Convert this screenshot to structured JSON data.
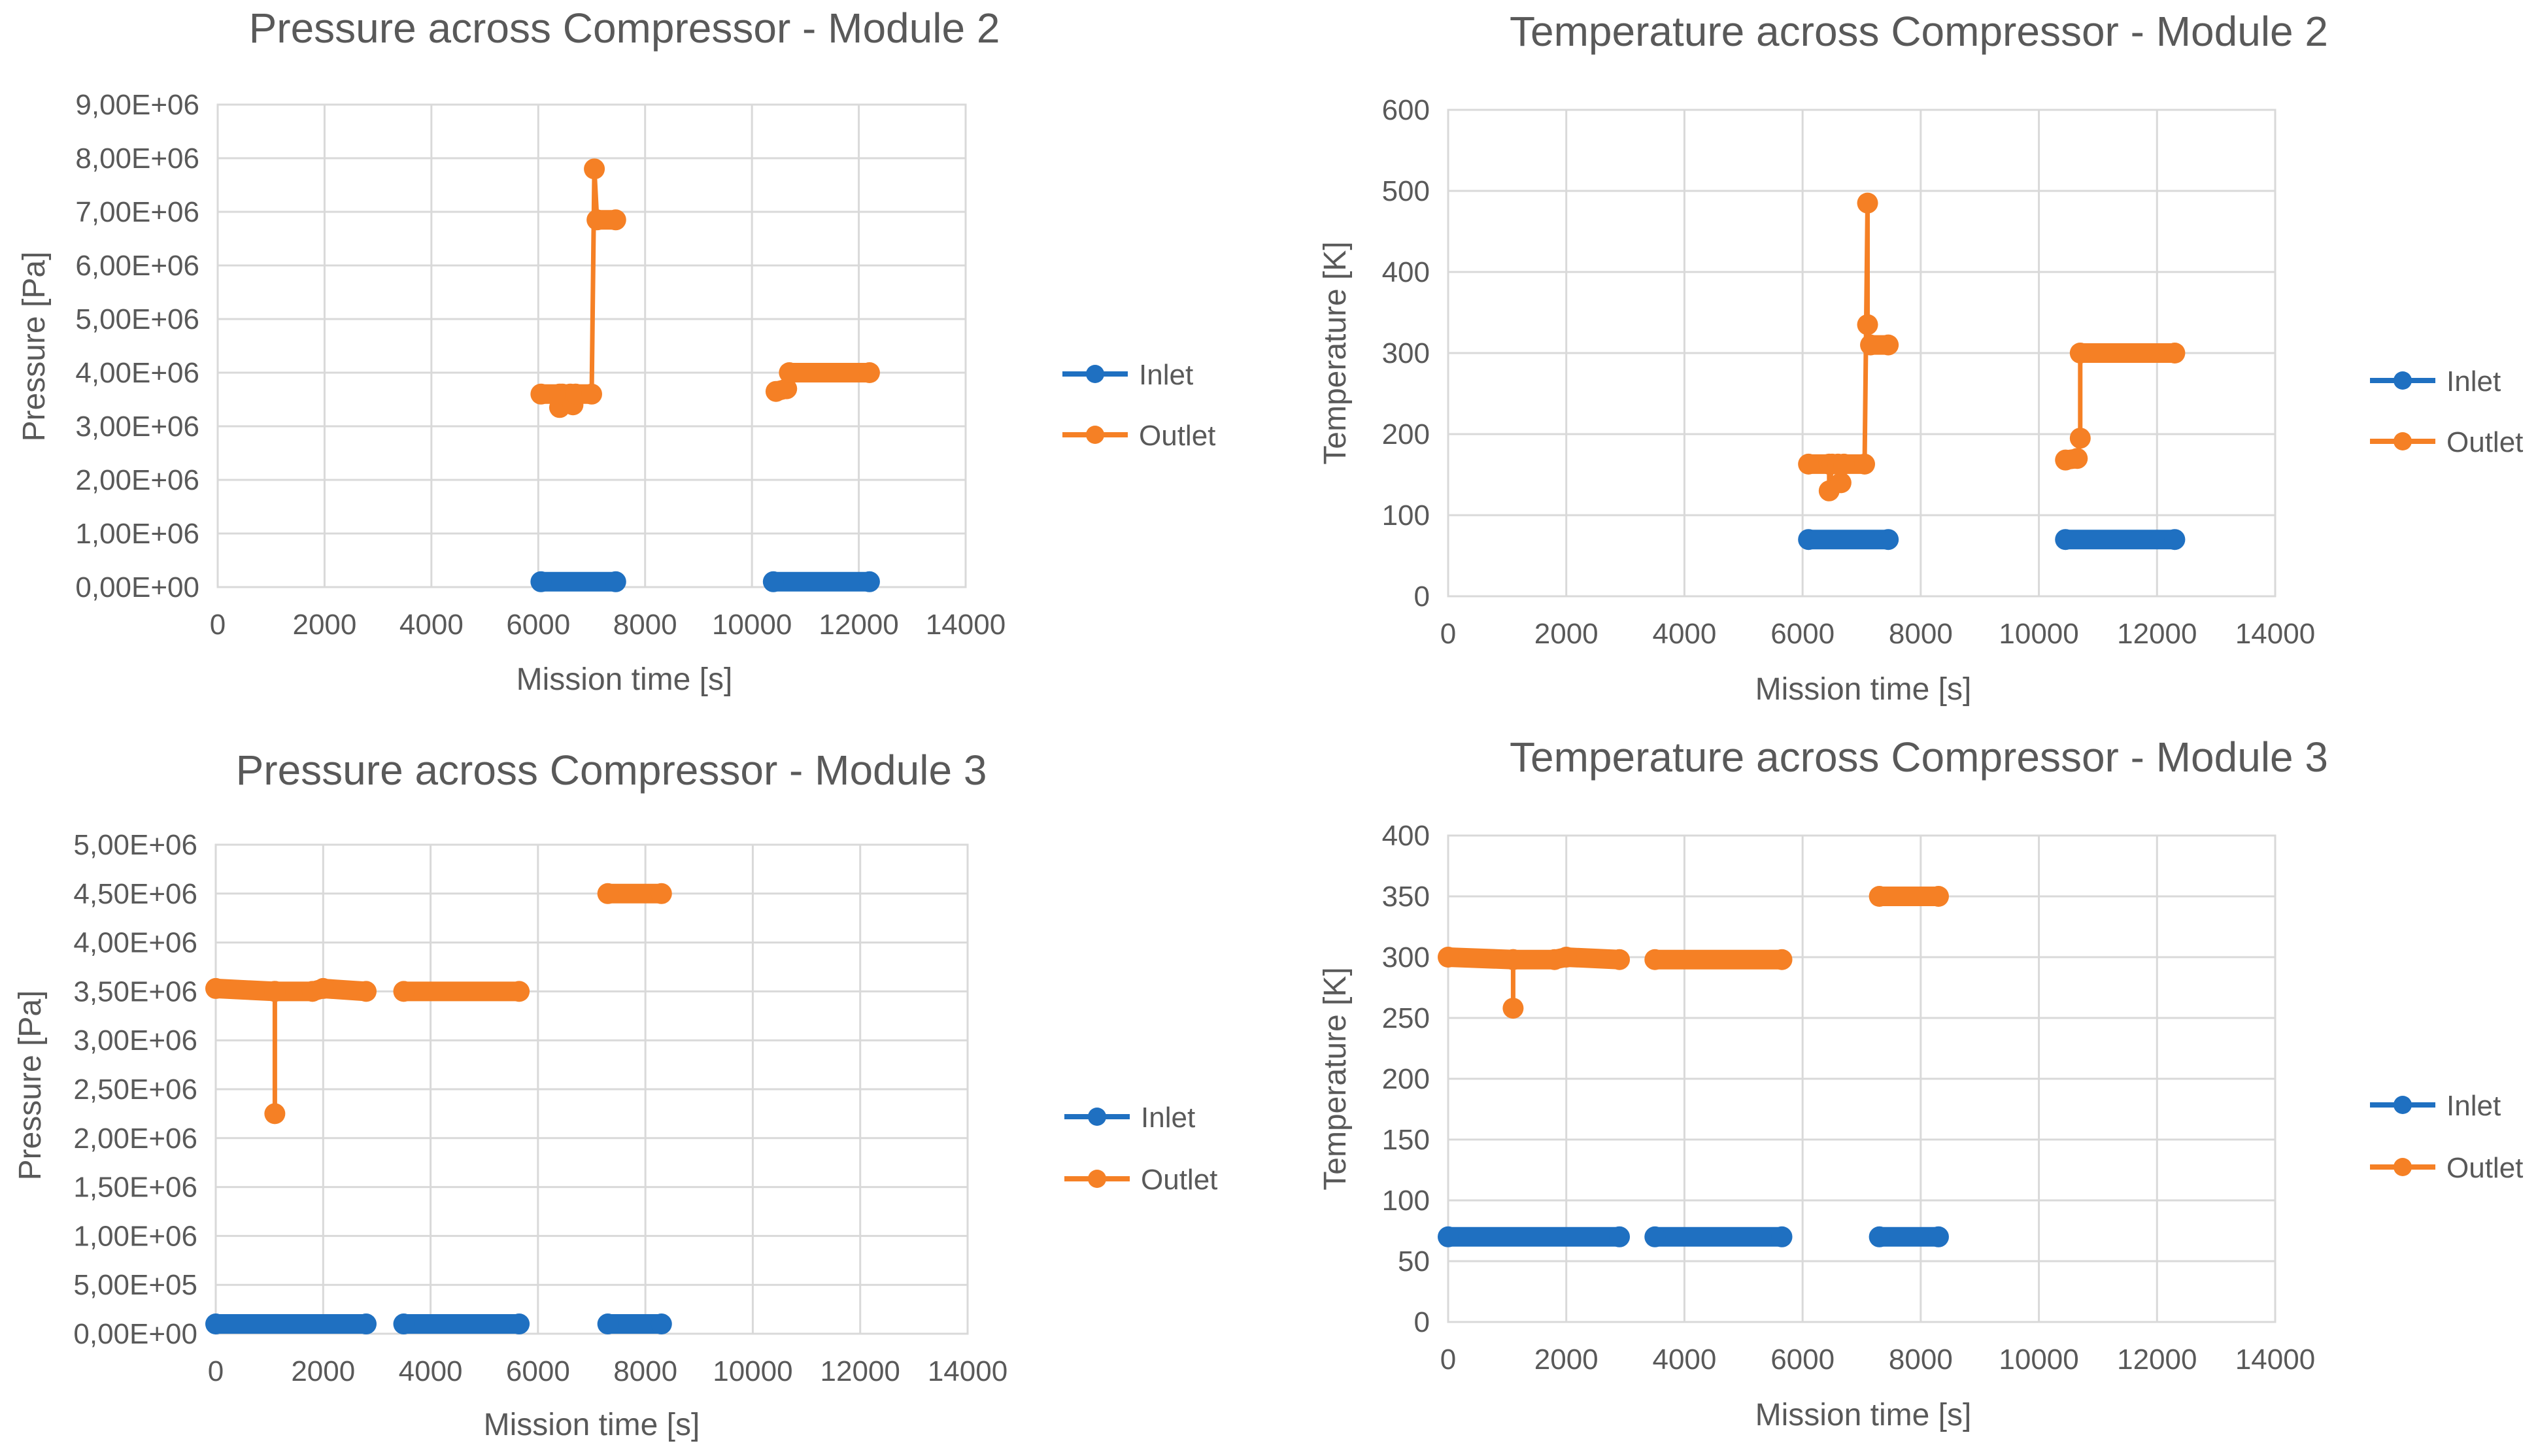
{
  "colors": {
    "inlet": "#1F70C1",
    "outlet": "#F58025",
    "grid": "#D9D9D9",
    "text": "#595959"
  },
  "chart_data": [
    {
      "type": "line",
      "title": "Pressure across Compressor  - Module 2",
      "xlabel": "Mission time [s]",
      "ylabel": "Pressure [Pa]",
      "xlim": [
        0,
        14000
      ],
      "ylim": [
        0,
        9000000
      ],
      "x_ticks": [
        "0",
        "2000",
        "4000",
        "6000",
        "8000",
        "10000",
        "12000",
        "14000"
      ],
      "y_ticks": [
        "0,00E+00",
        "1,00E+06",
        "2,00E+06",
        "3,00E+06",
        "4,00E+06",
        "5,00E+06",
        "6,00E+06",
        "7,00E+06",
        "8,00E+06",
        "9,00E+06"
      ],
      "legend": [
        "Inlet",
        "Outlet"
      ],
      "series": [
        {
          "name": "Inlet",
          "segments": [
            [
              [
                6050,
                100000
              ],
              [
                7450,
                100000
              ]
            ],
            [
              [
                10400,
                100000
              ],
              [
                12200,
                100000
              ]
            ]
          ]
        },
        {
          "name": "Outlet",
          "segments": [
            [
              [
                6050,
                3600000
              ],
              [
                6400,
                3600000
              ],
              [
                6400,
                3350000
              ],
              [
                6450,
                3600000
              ],
              [
                6600,
                3600000
              ],
              [
                6650,
                3400000
              ],
              [
                6700,
                3600000
              ],
              [
                7000,
                3600000
              ],
              [
                7050,
                7800000
              ],
              [
                7100,
                6850000
              ],
              [
                7450,
                6850000
              ]
            ],
            [
              [
                10450,
                3650000
              ],
              [
                10650,
                3700000
              ],
              [
                10700,
                4000000
              ],
              [
                12200,
                4000000
              ]
            ]
          ]
        }
      ]
    },
    {
      "type": "line",
      "title": "Temperature  across Compressor  - Module 2",
      "xlabel": "Mission time [s]",
      "ylabel": "Temperature [K]",
      "xlim": [
        0,
        14000
      ],
      "ylim": [
        0,
        600
      ],
      "x_ticks": [
        "0",
        "2000",
        "4000",
        "6000",
        "8000",
        "10000",
        "12000",
        "14000"
      ],
      "y_ticks": [
        "0",
        "100",
        "200",
        "300",
        "400",
        "500",
        "600"
      ],
      "legend": [
        "Inlet",
        "Outlet"
      ],
      "series": [
        {
          "name": "Inlet",
          "segments": [
            [
              [
                6100,
                70
              ],
              [
                7450,
                70
              ]
            ],
            [
              [
                10450,
                70
              ],
              [
                12300,
                70
              ]
            ]
          ]
        },
        {
          "name": "Outlet",
          "segments": [
            [
              [
                6100,
                163
              ],
              [
                6450,
                163
              ],
              [
                6450,
                130
              ],
              [
                6500,
                163
              ],
              [
                6600,
                163
              ],
              [
                6650,
                140
              ],
              [
                6700,
                163
              ],
              [
                7050,
                163
              ],
              [
                7100,
                485
              ],
              [
                7100,
                335
              ],
              [
                7150,
                310
              ],
              [
                7450,
                310
              ]
            ],
            [
              [
                10450,
                168
              ],
              [
                10650,
                170
              ],
              [
                10700,
                195
              ],
              [
                10700,
                300
              ],
              [
                12300,
                300
              ]
            ]
          ]
        }
      ]
    },
    {
      "type": "line",
      "title": "Pressure across Compressor  - Module 3",
      "xlabel": "Mission time [s]",
      "ylabel": "Pressure [Pa]",
      "xlim": [
        0,
        14000
      ],
      "ylim": [
        0,
        5000000
      ],
      "x_ticks": [
        "0",
        "2000",
        "4000",
        "6000",
        "8000",
        "10000",
        "12000",
        "14000"
      ],
      "y_ticks": [
        "0,00E+00",
        "5,00E+05",
        "1,00E+06",
        "1,50E+06",
        "2,00E+06",
        "2,50E+06",
        "3,00E+06",
        "3,50E+06",
        "4,00E+06",
        "4,50E+06",
        "5,00E+06"
      ],
      "legend": [
        "Inlet",
        "Outlet"
      ],
      "series": [
        {
          "name": "Inlet",
          "segments": [
            [
              [
                0,
                100000
              ],
              [
                2800,
                100000
              ]
            ],
            [
              [
                3500,
                100000
              ],
              [
                5650,
                100000
              ]
            ],
            [
              [
                7300,
                100000
              ],
              [
                8300,
                100000
              ]
            ]
          ]
        },
        {
          "name": "Outlet",
          "segments": [
            [
              [
                0,
                3530000
              ],
              [
                1100,
                3500000
              ],
              [
                1100,
                2250000
              ],
              [
                1100,
                3500000
              ],
              [
                1800,
                3500000
              ],
              [
                2000,
                3530000
              ],
              [
                2800,
                3500000
              ]
            ],
            [
              [
                3500,
                3500000
              ],
              [
                5650,
                3500000
              ]
            ],
            [
              [
                7300,
                4500000
              ],
              [
                8300,
                4500000
              ]
            ]
          ]
        }
      ]
    },
    {
      "type": "line",
      "title": "Temperature  across Compressor  - Module 3",
      "xlabel": "Mission time [s]",
      "ylabel": "Temperature [K]",
      "xlim": [
        0,
        14000
      ],
      "ylim": [
        0,
        400
      ],
      "x_ticks": [
        "0",
        "2000",
        "4000",
        "6000",
        "8000",
        "10000",
        "12000",
        "14000"
      ],
      "y_ticks": [
        "0",
        "50",
        "100",
        "150",
        "200",
        "250",
        "300",
        "350",
        "400"
      ],
      "legend": [
        "Inlet",
        "Outlet"
      ],
      "series": [
        {
          "name": "Inlet",
          "segments": [
            [
              [
                0,
                70
              ],
              [
                2900,
                70
              ]
            ],
            [
              [
                3500,
                70
              ],
              [
                5650,
                70
              ]
            ],
            [
              [
                7300,
                70
              ],
              [
                8300,
                70
              ]
            ]
          ]
        },
        {
          "name": "Outlet",
          "segments": [
            [
              [
                0,
                300
              ],
              [
                1100,
                298
              ],
              [
                1100,
                258
              ],
              [
                1100,
                298
              ],
              [
                1800,
                298
              ],
              [
                2000,
                300
              ],
              [
                2900,
                298
              ]
            ],
            [
              [
                3500,
                298
              ],
              [
                5650,
                298
              ]
            ],
            [
              [
                7300,
                350
              ],
              [
                8300,
                350
              ]
            ]
          ]
        }
      ]
    }
  ]
}
